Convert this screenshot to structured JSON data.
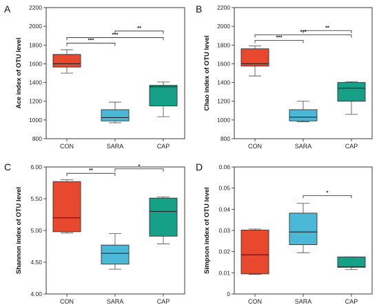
{
  "colors": {
    "CON": "#e8482e",
    "SARA": "#4ab8d6",
    "CAP": "#17a088"
  },
  "chart_data": [
    {
      "type": "box",
      "panel": "A",
      "ylabel": "Ace index of OTU level",
      "categories": [
        "CON",
        "SARA",
        "CAP"
      ],
      "ylim": [
        800,
        2200
      ],
      "yticks": [
        800,
        1000,
        1200,
        1400,
        1600,
        1800,
        2000,
        2200
      ],
      "tick_labels": [
        "800",
        "1000",
        "1200",
        "1400",
        "1600",
        "1800",
        "2000",
        "2200"
      ],
      "boxes": [
        {
          "category": "CON",
          "min": 1500,
          "q1": 1565,
          "median": 1600,
          "q3": 1700,
          "max": 1750
        },
        {
          "category": "SARA",
          "min": 970,
          "q1": 990,
          "median": 1025,
          "q3": 1110,
          "max": 1190
        },
        {
          "category": "CAP",
          "min": 1035,
          "q1": 1150,
          "median": 1355,
          "q3": 1370,
          "max": 1405
        }
      ],
      "significance": [
        {
          "from": 0,
          "to": 1,
          "y": 1820,
          "label": "***"
        },
        {
          "from": 0,
          "to": 2,
          "y": 1880,
          "label": "***"
        },
        {
          "from": 1,
          "to": 2,
          "y": 1950,
          "label": "**"
        }
      ]
    },
    {
      "type": "box",
      "panel": "B",
      "ylabel": "Chao index of OTU level",
      "categories": [
        "CON",
        "SARA",
        "CAP"
      ],
      "ylim": [
        800,
        2200
      ],
      "yticks": [
        800,
        1000,
        1200,
        1400,
        1600,
        1800,
        2000,
        2200
      ],
      "tick_labels": [
        "800",
        "1000",
        "1200",
        "1400",
        "1600",
        "1800",
        "2000",
        "2200"
      ],
      "boxes": [
        {
          "category": "CON",
          "min": 1470,
          "q1": 1575,
          "median": 1600,
          "q3": 1760,
          "max": 1790
        },
        {
          "category": "SARA",
          "min": 980,
          "q1": 990,
          "median": 1030,
          "q3": 1110,
          "max": 1200
        },
        {
          "category": "CAP",
          "min": 1060,
          "q1": 1200,
          "median": 1340,
          "q3": 1400,
          "max": 1410
        }
      ],
      "significance": [
        {
          "from": 0,
          "to": 1,
          "y": 1850,
          "label": "***"
        },
        {
          "from": 0,
          "to": 2,
          "y": 1910,
          "label": "***"
        },
        {
          "from": 1,
          "to": 2,
          "y": 1955,
          "label": "**"
        }
      ]
    },
    {
      "type": "box",
      "panel": "C",
      "ylabel": "Shannon index of OTU level",
      "categories": [
        "CON",
        "SARA",
        "CAP"
      ],
      "ylim": [
        4.0,
        6.0
      ],
      "yticks": [
        4.0,
        4.5,
        5.0,
        5.5,
        6.0
      ],
      "tick_labels": [
        "4.00",
        "4.50",
        "5.00",
        "5.50",
        "6.00"
      ],
      "boxes": [
        {
          "category": "CON",
          "min": 4.96,
          "q1": 4.98,
          "median": 5.2,
          "q3": 5.77,
          "max": 5.8
        },
        {
          "category": "SARA",
          "min": 4.39,
          "q1": 4.47,
          "median": 4.64,
          "q3": 4.77,
          "max": 4.95
        },
        {
          "category": "CAP",
          "min": 4.79,
          "q1": 4.91,
          "median": 5.3,
          "q3": 5.51,
          "max": 5.53
        }
      ],
      "significance": [
        {
          "from": 0,
          "to": 1,
          "y": 5.9,
          "label": "**"
        },
        {
          "from": 1,
          "to": 2,
          "y": 5.97,
          "label": "*"
        }
      ]
    },
    {
      "type": "box",
      "panel": "D",
      "ylabel": "Simpson index of OTU level",
      "categories": [
        "CON",
        "SARA",
        "CAP"
      ],
      "ylim": [
        0,
        0.06
      ],
      "yticks": [
        0,
        0.01,
        0.02,
        0.03,
        0.04,
        0.05,
        0.06
      ],
      "tick_labels": [
        "0",
        "0.01",
        "0.02",
        "0.03",
        "0.04",
        "0.05",
        "0.06"
      ],
      "boxes": [
        {
          "category": "CON",
          "min": 0.0092,
          "q1": 0.0095,
          "median": 0.0185,
          "q3": 0.0302,
          "max": 0.0307
        },
        {
          "category": "SARA",
          "min": 0.0195,
          "q1": 0.0233,
          "median": 0.0293,
          "q3": 0.0382,
          "max": 0.0428
        },
        {
          "category": "CAP",
          "min": 0.0115,
          "q1": 0.0126,
          "median": 0.0128,
          "q3": 0.0175,
          "max": 0.0175
        }
      ],
      "significance": [
        {
          "from": 1,
          "to": 2,
          "y": 0.0465,
          "label": "*"
        }
      ]
    }
  ]
}
